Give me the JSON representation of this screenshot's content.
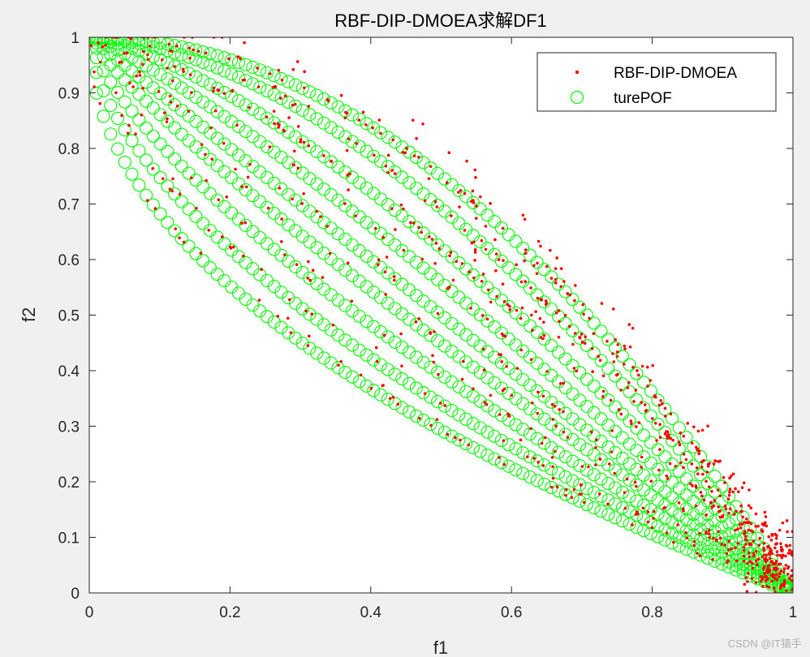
{
  "chart_data": {
    "type": "scatter",
    "title": "RBF-DIP-DMOEA求解DF1",
    "xlabel": "f1",
    "ylabel": "f2",
    "xlim": [
      0,
      1
    ],
    "ylim": [
      0,
      1
    ],
    "xticks": [
      "0",
      "0.2",
      "0.4",
      "0.6",
      "0.8",
      "1"
    ],
    "yticks": [
      "0",
      "0.1",
      "0.2",
      "0.3",
      "0.4",
      "0.5",
      "0.6",
      "0.7",
      "0.8",
      "0.9",
      "1"
    ],
    "legend_position": "top-right",
    "grid": false,
    "series": [
      {
        "name": "RBF-DIP-DMOEA",
        "marker": "dot",
        "color": "#ff0000",
        "description": "approximated front points scattered on and slightly above the family of true fronts, f2 = 1 - f1^H",
        "front_exponents": [
          0.5,
          0.6,
          0.72,
          0.86,
          1.0,
          1.18,
          1.4,
          1.7,
          2.0
        ]
      },
      {
        "name": "turePOF",
        "marker": "circle",
        "color": "#00ff00",
        "description": "true Pareto fronts f2 = 1 - f1^H for several H values",
        "front_exponents": [
          0.5,
          0.6,
          0.72,
          0.86,
          1.0,
          1.18,
          1.4,
          1.7,
          2.0
        ],
        "points_per_front": 100
      }
    ]
  },
  "watermark": "CSDN @IT猿手"
}
